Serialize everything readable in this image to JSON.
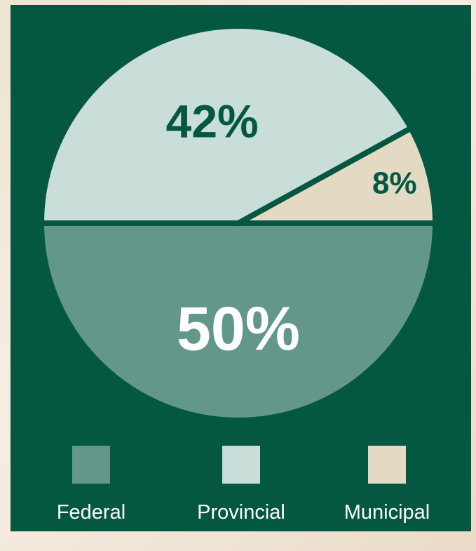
{
  "colors": {
    "background": "#045740",
    "federal": "#62978a",
    "provincial": "#c9ddd9",
    "municipal": "#e4dac3",
    "label_dark": "#045740",
    "label_light": "#ffffff"
  },
  "chart_data": {
    "type": "pie",
    "slices": [
      {
        "name": "Federal",
        "value": 50,
        "label": "50%",
        "color": "#62978a"
      },
      {
        "name": "Provincial",
        "value": 42,
        "label": "42%",
        "color": "#c9ddd9"
      },
      {
        "name": "Municipal",
        "value": 8,
        "label": "8%",
        "color": "#e4dac3"
      }
    ],
    "legend_position": "bottom"
  }
}
